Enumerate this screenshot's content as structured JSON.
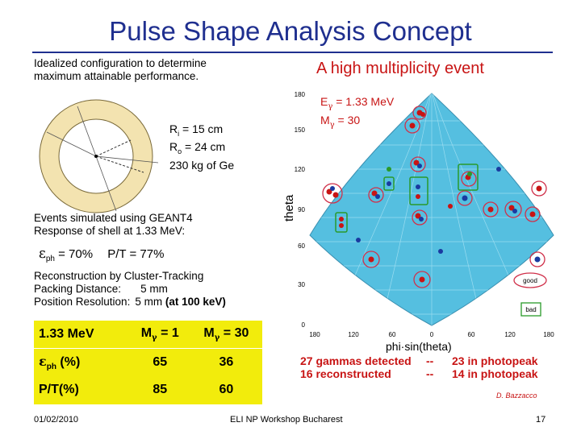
{
  "slide": {
    "title": "Pulse Shape Analysis Concept",
    "left": {
      "intro_line1": "Idealized configuration to determine",
      "intro_line2": "maximum attainable performance.",
      "ri": "R",
      "ri_sub": "i",
      "ri_val": " = 15 cm",
      "ro": "R",
      "ro_sub": "o",
      "ro_val": " = 24 cm",
      "mass": "230 kg of Ge",
      "sim_line1": "Events simulated using GEANT4",
      "sim_line2": "Response of shell at 1.33 MeV:",
      "eps_sym": "ε",
      "eps_sub": "ph",
      "eps_val": " = 70%",
      "pt": "P/T = 77%",
      "recon_line1": "Reconstruction by Cluster-Tracking",
      "recon_line2_label": "Packing Distance:",
      "recon_line2_val": "5 mm",
      "recon_line3_label": "Position Resolution:",
      "recon_line3_val": "5 mm",
      "recon_line3_note": "(at 100 keV)"
    },
    "table": {
      "headers": [
        "1.33 MeV",
        "M",
        "γ",
        " = 1",
        "M",
        "γ",
        " = 30"
      ],
      "row_eps": {
        "sym": "ε",
        "sub": "ph",
        "label": " (%)",
        "v1": "65",
        "v2": "36"
      },
      "row_pt": {
        "label": "P/T(%)",
        "v1": "85",
        "v2": "60"
      }
    },
    "right": {
      "heading": "A high multiplicity event",
      "energy_label": "E",
      "energy_sub": "γ",
      "energy_val": " = 1.33 MeV",
      "mult_label": "M",
      "mult_sub": "γ",
      "mult_val": " = 30",
      "y_axis_label": "theta",
      "x_axis_label": "phi·sin(theta)",
      "y_ticks": [
        "180",
        "150",
        "120",
        "90",
        "60",
        "30",
        "0"
      ],
      "x_ticks": [
        "180",
        "120",
        "60",
        "0",
        "60",
        "120",
        "180"
      ],
      "legend_good": "good",
      "legend_bad": "bad",
      "summary1_left": "27 gammas detected",
      "summary1_sep": "--",
      "summary1_right": "23 in photopeak",
      "summary2_left": "16 reconstructed",
      "summary2_sep": "--",
      "summary2_right": "14 in photopeak",
      "credit": "D. Bazzacco"
    },
    "footer": {
      "date": "01/02/2010",
      "event": "ELI NP Workshop Bucharest",
      "page": "17"
    },
    "colors": {
      "title": "#1f2f8f",
      "accent_red": "#c81414",
      "table_bg": "#f2ec0c",
      "map_bg": "#55bfe0"
    }
  }
}
